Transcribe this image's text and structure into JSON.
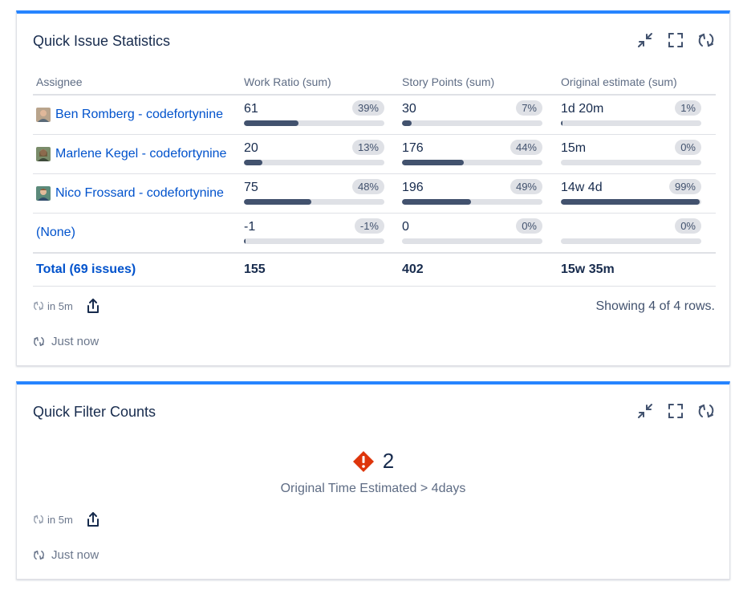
{
  "stats_gadget": {
    "title": "Quick Issue Statistics",
    "headers": [
      "Assignee",
      "Work Ratio (sum)",
      "Story Points (sum)",
      "Original estimate (sum)"
    ],
    "rows": [
      {
        "assignee": "Ben Romberg - codefortynine",
        "work_ratio": {
          "value": "61",
          "pct": "39%",
          "fraction": 0.39
        },
        "story_points": {
          "value": "30",
          "pct": "7%",
          "fraction": 0.07
        },
        "estimate": {
          "value": "1d 20m",
          "pct": "1%",
          "fraction": 0.01
        }
      },
      {
        "assignee": "Marlene Kegel - codefortynine",
        "work_ratio": {
          "value": "20",
          "pct": "13%",
          "fraction": 0.13
        },
        "story_points": {
          "value": "176",
          "pct": "44%",
          "fraction": 0.44
        },
        "estimate": {
          "value": "15m",
          "pct": "0%",
          "fraction": 0.0
        }
      },
      {
        "assignee": "Nico Frossard - codefortynine",
        "work_ratio": {
          "value": "75",
          "pct": "48%",
          "fraction": 0.48
        },
        "story_points": {
          "value": "196",
          "pct": "49%",
          "fraction": 0.49
        },
        "estimate": {
          "value": "14w 4d",
          "pct": "99%",
          "fraction": 0.99
        }
      },
      {
        "assignee": "(None)",
        "work_ratio": {
          "value": "-1",
          "pct": "-1%",
          "fraction": 0.01
        },
        "story_points": {
          "value": "0",
          "pct": "0%",
          "fraction": 0.0
        },
        "estimate": {
          "value": "",
          "pct": "0%",
          "fraction": 0.0
        }
      }
    ],
    "total": {
      "label": "Total (69 issues)",
      "work_ratio": "155",
      "story_points": "402",
      "estimate": "15w 35m"
    },
    "refresh_interval": "in 5m",
    "showing": "Showing 4 of 4 rows.",
    "last_updated": "Just now"
  },
  "filter_gadget": {
    "title": "Quick Filter Counts",
    "count": "2",
    "filter_label": "Original Time Estimated > 4days",
    "refresh_interval": "in 5m",
    "last_updated": "Just now"
  },
  "colors": {
    "accent": "#2684ff",
    "link": "#0052cc",
    "bar_fill": "#42526e",
    "bar_track": "#dfe1e6",
    "warning": "#de350b"
  },
  "icons": {
    "minimize": "minimize-icon",
    "fullscreen": "fullscreen-icon",
    "refresh": "refresh-icon",
    "share": "share-icon",
    "warning": "warning-icon"
  }
}
